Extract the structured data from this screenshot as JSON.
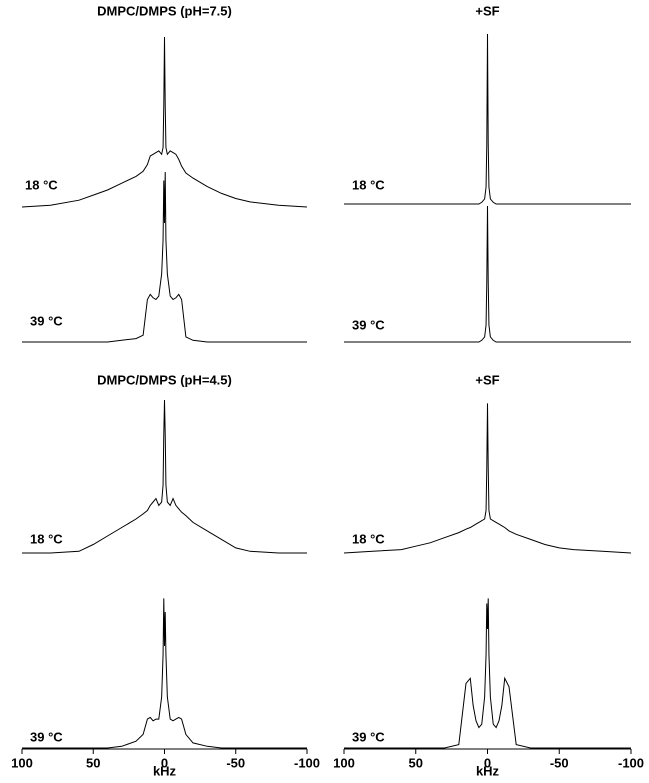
{
  "chart_data": [
    {
      "type": "line",
      "title": "DMPC/DMPS (pH=7.5)",
      "x": [
        100,
        80,
        60,
        50,
        40,
        30,
        20,
        15,
        12,
        10,
        8,
        6,
        4,
        2,
        1,
        0.5,
        0,
        -0.5,
        -1,
        -2,
        -4,
        -6,
        -8,
        -10,
        -12,
        -15,
        -20,
        -30,
        -40,
        -50,
        -60,
        -80,
        -100
      ],
      "xlim": [
        100,
        -100
      ],
      "ylim": [
        0,
        100
      ],
      "series": [
        {
          "name": "18 °C",
          "color": "#000000",
          "values": [
            0,
            1,
            4,
            7,
            10,
            14,
            18,
            21,
            25,
            30,
            31,
            32,
            33,
            31,
            35,
            60,
            100,
            60,
            35,
            31,
            33,
            32,
            31,
            28,
            24,
            20,
            17,
            12,
            8,
            5,
            3,
            1,
            0
          ]
        },
        {
          "name": "39 °C",
          "color": "#000000",
          "values": [
            0,
            0,
            0,
            0,
            0,
            1,
            2,
            4,
            25,
            28,
            26,
            25,
            27,
            40,
            60,
            95,
            70,
            100,
            60,
            40,
            27,
            25,
            26,
            28,
            25,
            3,
            1,
            0,
            0,
            0,
            0,
            0,
            0
          ]
        }
      ]
    },
    {
      "type": "line",
      "title": "+SF",
      "x": [
        100,
        80,
        60,
        50,
        40,
        30,
        20,
        15,
        12,
        10,
        8,
        6,
        4,
        2,
        1,
        0.5,
        0,
        -0.5,
        -1,
        -2,
        -4,
        -6,
        -8,
        -10,
        -12,
        -15,
        -20,
        -30,
        -40,
        -50,
        -60,
        -80,
        -100
      ],
      "xlim": [
        100,
        -100
      ],
      "ylim": [
        0,
        100
      ],
      "series": [
        {
          "name": "18 °C",
          "color": "#000000",
          "values": [
            0,
            0,
            0,
            0,
            0,
            0,
            0,
            0,
            0,
            0,
            0,
            0,
            1,
            3,
            10,
            35,
            100,
            35,
            10,
            3,
            1,
            0,
            0,
            0,
            0,
            0,
            0,
            0,
            0,
            0,
            0,
            0,
            0
          ]
        },
        {
          "name": "39 °C",
          "color": "#000000",
          "values": [
            0,
            0,
            0,
            0,
            0,
            0,
            0,
            0,
            0,
            0,
            0,
            0,
            1,
            3,
            10,
            35,
            80,
            35,
            10,
            3,
            1,
            0,
            0,
            0,
            0,
            0,
            0,
            0,
            0,
            0,
            0,
            0,
            0
          ]
        }
      ]
    },
    {
      "type": "line",
      "title": "DMPC/DMPS (pH=4.5)",
      "x": [
        100,
        80,
        60,
        50,
        40,
        30,
        20,
        15,
        12,
        10,
        8,
        6,
        4,
        2,
        1,
        0.5,
        0,
        -0.5,
        -1,
        -2,
        -4,
        -6,
        -8,
        -10,
        -12,
        -15,
        -20,
        -30,
        -40,
        -50,
        -60,
        -80,
        -100
      ],
      "xlim": [
        100,
        -100
      ],
      "ylim": [
        0,
        100
      ],
      "xticks": [
        100,
        50,
        0,
        -50,
        -100
      ],
      "xlabel": "kHz",
      "series": [
        {
          "name": "18 °C",
          "color": "#000000",
          "values": [
            0,
            0,
            1,
            5,
            10,
            15,
            20,
            23,
            25,
            28,
            30,
            32,
            28,
            30,
            40,
            70,
            90,
            70,
            40,
            30,
            28,
            32,
            28,
            26,
            24,
            22,
            18,
            13,
            8,
            3,
            1,
            0,
            0
          ]
        },
        {
          "name": "39 °C",
          "color": "#000000",
          "values": [
            0,
            0,
            0,
            0,
            0,
            1,
            4,
            8,
            17,
            18,
            16,
            17,
            17,
            30,
            55,
            88,
            60,
            80,
            55,
            30,
            17,
            16,
            17,
            18,
            17,
            8,
            3,
            1,
            0,
            0,
            0,
            0,
            0
          ]
        }
      ]
    },
    {
      "type": "line",
      "title": "+SF",
      "x": [
        100,
        80,
        60,
        50,
        40,
        30,
        20,
        15,
        12,
        10,
        8,
        6,
        4,
        2,
        1,
        0.5,
        0,
        -0.5,
        -1,
        -2,
        -4,
        -6,
        -8,
        -10,
        -12,
        -15,
        -20,
        -30,
        -40,
        -50,
        -60,
        -80,
        -100
      ],
      "xlim": [
        100,
        -100
      ],
      "ylim": [
        0,
        100
      ],
      "xticks": [
        100,
        50,
        0,
        -50,
        -100
      ],
      "xlabel": "kHz",
      "series": [
        {
          "name": "18 °C",
          "color": "#000000",
          "values": [
            0,
            1,
            2,
            4,
            6,
            9,
            12,
            14,
            15,
            16,
            17,
            18,
            19,
            20,
            25,
            50,
            88,
            50,
            25,
            20,
            19,
            18,
            17,
            16,
            15,
            13,
            11,
            8,
            5,
            3,
            2,
            1,
            0
          ]
        },
        {
          "name": "39 °C",
          "color": "#000000",
          "values": [
            0,
            0,
            0,
            0,
            0,
            0,
            2,
            38,
            41,
            25,
            16,
            12,
            14,
            30,
            55,
            85,
            70,
            88,
            55,
            30,
            14,
            12,
            16,
            25,
            41,
            36,
            2,
            0,
            0,
            0,
            0,
            0,
            0
          ]
        }
      ]
    }
  ]
}
